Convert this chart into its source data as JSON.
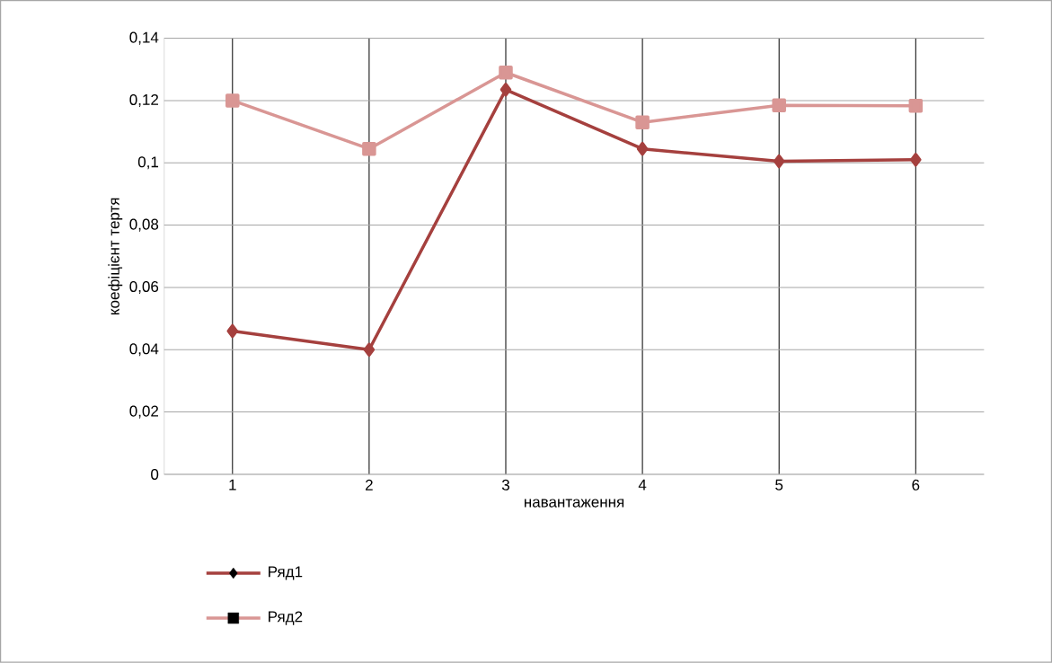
{
  "chart_data": {
    "type": "line",
    "xlabel": "навантаження",
    "ylabel": "коефіцієнт тертя",
    "categories": [
      "1",
      "2",
      "3",
      "4",
      "5",
      "6"
    ],
    "series": [
      {
        "name": "Ряд1",
        "color": "#a5403e",
        "marker": "diamond",
        "values": [
          0.046,
          0.04,
          0.1235,
          0.1045,
          0.1005,
          0.101
        ]
      },
      {
        "name": "Ряд2",
        "color": "#d99694",
        "marker": "square",
        "values": [
          0.12,
          0.1045,
          0.129,
          0.113,
          0.1185,
          0.1183
        ]
      }
    ],
    "ylim": [
      0,
      0.14
    ],
    "yticks": [
      {
        "value": 0,
        "label": "0"
      },
      {
        "value": 0.02,
        "label": "0,02"
      },
      {
        "value": 0.04,
        "label": "0,04"
      },
      {
        "value": 0.06,
        "label": "0,06"
      },
      {
        "value": 0.08,
        "label": "0,08"
      },
      {
        "value": 0.1,
        "label": "0,1"
      },
      {
        "value": 0.12,
        "label": "0,12"
      },
      {
        "value": 0.14,
        "label": "0,14"
      }
    ],
    "grid": true,
    "legend": "bottom left",
    "line_style": "solid"
  }
}
